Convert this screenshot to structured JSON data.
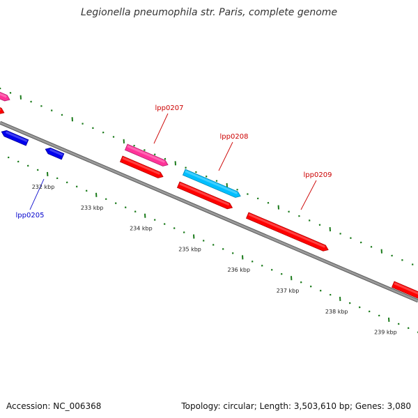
{
  "title": "Legionella pneumophila str. Paris, complete genome",
  "footer": {
    "accession": "Accession: NC_006368",
    "summary": "Topology: circular; Length: 3,503,610 bp; Genes: 3,080"
  },
  "colors": {
    "backbone": "#808080",
    "backbone_edge": "#5a5a5a",
    "tick": "#1a7a1a",
    "red_gene": "#ff0000",
    "red_gene_dark": "#b40000",
    "pink_gene": "#ff3399",
    "pink_gene_dark": "#b31f6b",
    "blue_gene": "#0000ee",
    "blue_gene_dark": "#00009a",
    "cyan_gene": "#00bfff",
    "cyan_gene_dark": "#0087b3",
    "label_red": "#cc0000",
    "label_blue": "#0000cc"
  },
  "scale_labels": [
    "232 kbp",
    "233 kbp",
    "234 kbp",
    "235 kbp",
    "236 kbp",
    "237 kbp",
    "238 kbp",
    "239 kbp"
  ],
  "gene_labels": [
    {
      "name": "lpp0207",
      "color": "label_red"
    },
    {
      "name": "lpp0208",
      "color": "label_red"
    },
    {
      "name": "lpp0209",
      "color": "label_red"
    },
    {
      "name": "lpp0205",
      "color": "label_blue"
    }
  ]
}
